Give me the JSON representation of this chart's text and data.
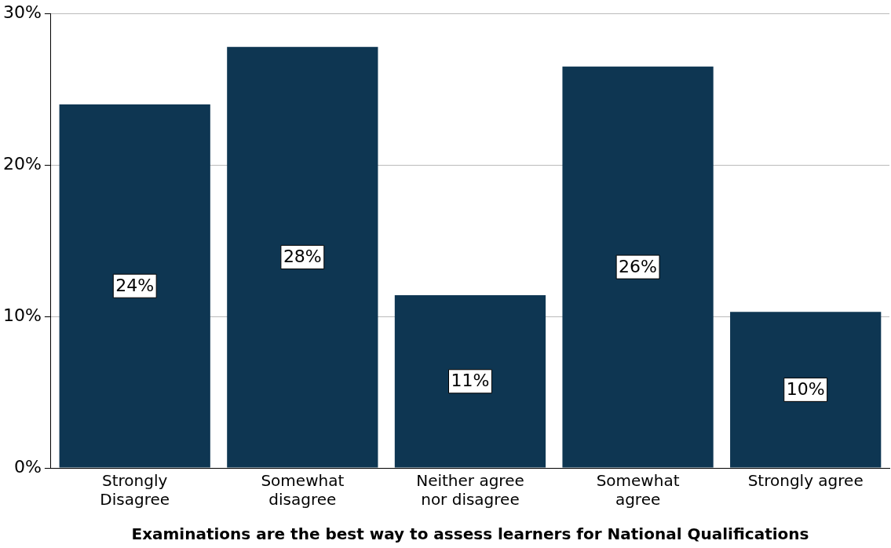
{
  "chart_data": {
    "type": "bar",
    "xlabel": "Examinations are the best way to assess learners for National Qualifications",
    "categories": [
      "Strongly\nDisagree",
      "Somewhat\ndisagree",
      "Neither agree\nnor disagree",
      "Somewhat\nagree",
      "Strongly agree"
    ],
    "values": [
      24.0,
      27.8,
      11.4,
      26.5,
      10.3
    ],
    "value_labels": [
      "24%",
      "28%",
      "11%",
      "26%",
      "10%"
    ],
    "color": "#0e3652",
    "ylim": [
      0,
      30
    ],
    "yticks": [
      {
        "value": 0,
        "label": "0%"
      },
      {
        "value": 10,
        "label": "10%"
      },
      {
        "value": 20,
        "label": "20%"
      },
      {
        "value": 30,
        "label": "30%"
      }
    ],
    "grid": "y",
    "legend": false
  }
}
